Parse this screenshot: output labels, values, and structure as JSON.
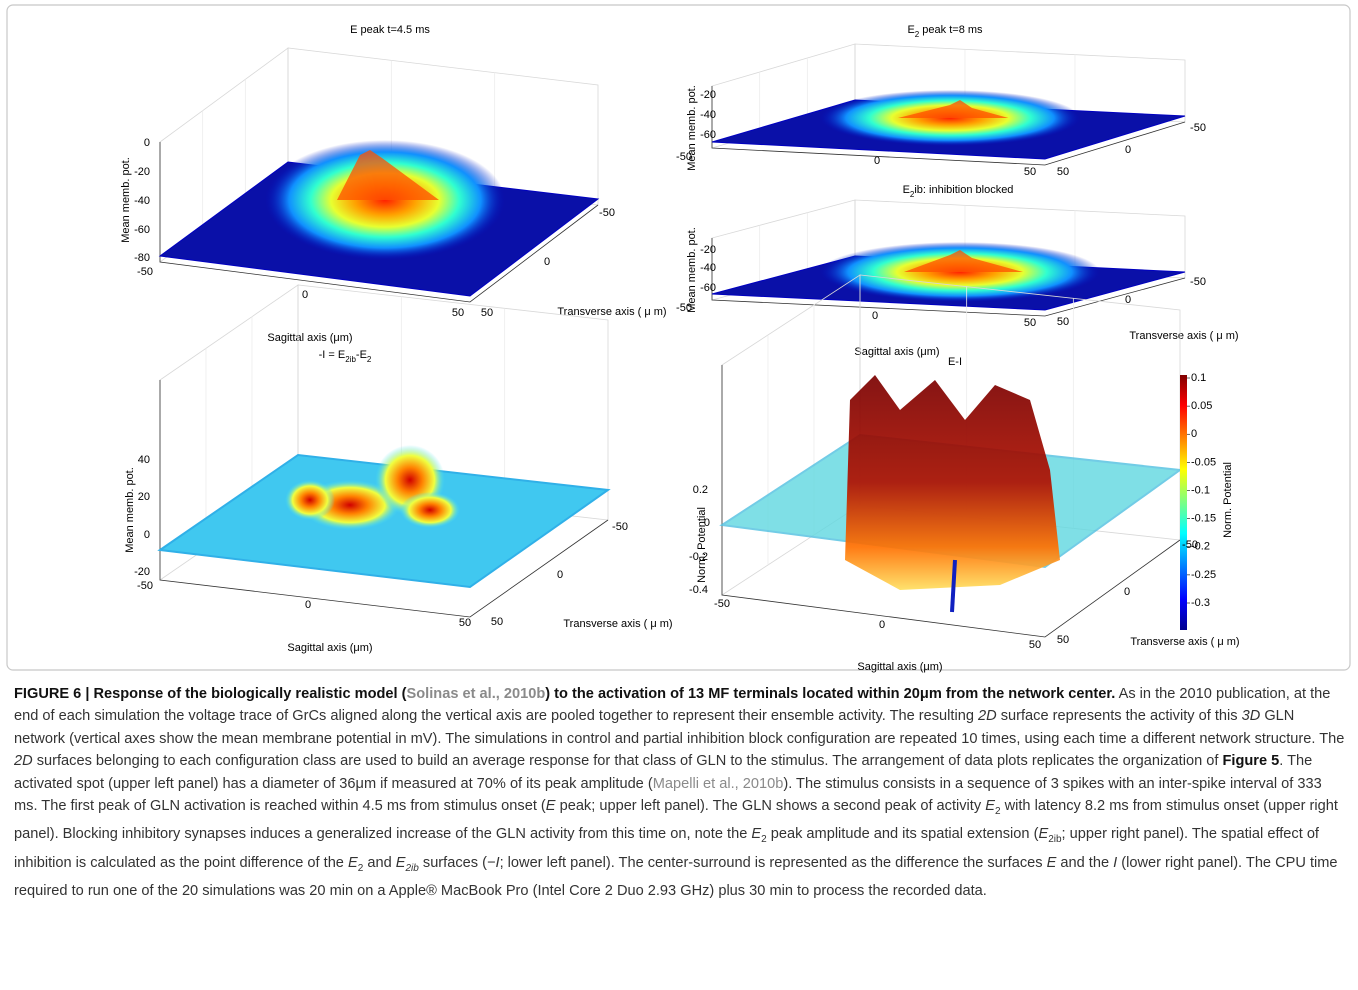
{
  "panels": [
    {
      "title": "E peak t=4.5 ms",
      "z_label": "Mean memb. pot.",
      "z_ticks": [
        "0",
        "-20",
        "-40",
        "-60",
        "-80"
      ],
      "sagittal_ticks": [
        "-50",
        "0",
        "50"
      ],
      "transverse_ticks": [
        "50",
        "0",
        "-50"
      ],
      "sagittal_label": "Sagittal axis (μm)",
      "transverse_label": "Transverse axis ( μ m)"
    },
    {
      "title": [
        {
          "text": "E"
        },
        {
          "text": "2",
          "style": "sub"
        },
        {
          "text": " peak t=8 ms"
        }
      ],
      "z_label": "Mean memb. pot.",
      "z_ticks": [
        "-20",
        "-40",
        "-60"
      ],
      "sagittal_ticks": [
        "-50",
        "0",
        "50"
      ],
      "transverse_ticks": [
        "50",
        "0",
        "-50"
      ]
    },
    {
      "title": [
        {
          "text": "E"
        },
        {
          "text": "2",
          "style": "sub"
        },
        {
          "text": "ib: inhibition blocked"
        }
      ],
      "z_label": "Mean memb. pot.",
      "z_ticks": [
        "-20",
        "-40",
        "-60"
      ],
      "sagittal_ticks": [
        "-50",
        "0",
        "50"
      ],
      "transverse_ticks": [
        "50",
        "0",
        "-50"
      ],
      "sagittal_label": "Sagittal axis (μm)",
      "transverse_label": "Transverse axis ( μ m)"
    },
    {
      "title": [
        {
          "text": "-I = E"
        },
        {
          "text": "2ib",
          "style": "sub"
        },
        {
          "text": "-E"
        },
        {
          "text": "2",
          "style": "sub"
        }
      ],
      "z_label": "Mean memb. pot.",
      "z_ticks": [
        "40",
        "20",
        "0",
        "-20"
      ],
      "sagittal_ticks": [
        "-50",
        "0",
        "50"
      ],
      "transverse_ticks": [
        "50",
        "0",
        "-50"
      ],
      "sagittal_label": "Sagittal axis (μm)",
      "transverse_label": "Transverse axis ( μ m)"
    },
    {
      "title": "E-I",
      "z_label": "Norm. Potential",
      "z_ticks": [
        "0.2",
        "0",
        "-0.2",
        "-0.4"
      ],
      "sagittal_ticks": [
        "-50",
        "0",
        "50"
      ],
      "transverse_ticks": [
        "50",
        "0",
        "-50"
      ],
      "sagittal_label": "Sagittal axis (μm)",
      "transverse_label": "Transverse axis ( μ m)",
      "colorbar": {
        "label": "Norm. Potential",
        "ticks": [
          "0.1",
          "0.05",
          "0",
          "-0.05",
          "-0.1",
          "-0.15",
          "-0.2",
          "-0.25",
          "-0.3"
        ]
      }
    }
  ],
  "caption": [
    {
      "text": "FIGURE 6 | Response of the biologically realistic model (",
      "style": "bold"
    },
    {
      "text": "Solinas et al., 2010b",
      "style": "boldlink"
    },
    {
      "text": ") to the activation of 13 MF terminals located within 20μm from the network center.",
      "style": "bold"
    },
    {
      "text": " As in the 2010 publication, at the end of each simulation the voltage trace of GrCs aligned along the vertical axis are pooled together to represent their ensemble activity. The resulting "
    },
    {
      "text": "2D",
      "style": "italic"
    },
    {
      "text": " surface represents the activity of this "
    },
    {
      "text": "3D",
      "style": "italic"
    },
    {
      "text": " GLN network (vertical axes show the mean membrane potential in mV). The simulations in control and partial inhibition block configuration are repeated 10 times, using each time a different network structure. The "
    },
    {
      "text": "2D",
      "style": "italic"
    },
    {
      "text": " surfaces belonging to each configuration class are used to build an average response for that class of GLN to the stimulus. The arrangement of data plots replicates the organization of "
    },
    {
      "text": "Figure 5",
      "style": "bold"
    },
    {
      "text": ". The activated spot (upper left panel) has a diameter of 36μm if measured at 70% of its peak amplitude ("
    },
    {
      "text": "Mapelli et al., 2010b",
      "style": "link"
    },
    {
      "text": "). The stimulus consists in a sequence of 3 spikes with an inter-spike interval of 333 ms. The first peak of GLN activation is reached within 4.5 ms from stimulus onset ("
    },
    {
      "text": "E",
      "style": "italic"
    },
    {
      "text": " peak; upper left panel). The GLN shows a second peak of activity "
    },
    {
      "text": "E",
      "style": "italic"
    },
    {
      "text": "2",
      "style": "subr"
    },
    {
      "text": " with latency 8.2 ms from stimulus onset (upper right panel). Blocking inhibitory synapses induces a generalized increase of the GLN activity from this time on, note the "
    },
    {
      "text": "E",
      "style": "italic"
    },
    {
      "text": "2",
      "style": "subr"
    },
    {
      "text": " peak amplitude and its spatial extension ("
    },
    {
      "text": "E",
      "style": "italic"
    },
    {
      "text": "2ib",
      "style": "subr"
    },
    {
      "text": "; upper right panel). The spatial effect of inhibition is calculated as the point difference of the "
    },
    {
      "text": "E",
      "style": "italic"
    },
    {
      "text": "2",
      "style": "subr"
    },
    {
      "text": " and "
    },
    {
      "text": "E",
      "style": "italic"
    },
    {
      "text": "2ib",
      "style": "sub"
    },
    {
      "text": " surfaces (−"
    },
    {
      "text": "I",
      "style": "italic"
    },
    {
      "text": "; lower left panel). The center-surround is represented as the difference the surfaces "
    },
    {
      "text": "E",
      "style": "italic"
    },
    {
      "text": " and the "
    },
    {
      "text": "I",
      "style": "italic"
    },
    {
      "text": " (lower right panel). The CPU time required to run one of the 20 simulations was 20 min on a Apple® MacBook Pro (Intel Core 2 Duo 2.93 GHz) plus 30 min to process the recorded data."
    }
  ]
}
